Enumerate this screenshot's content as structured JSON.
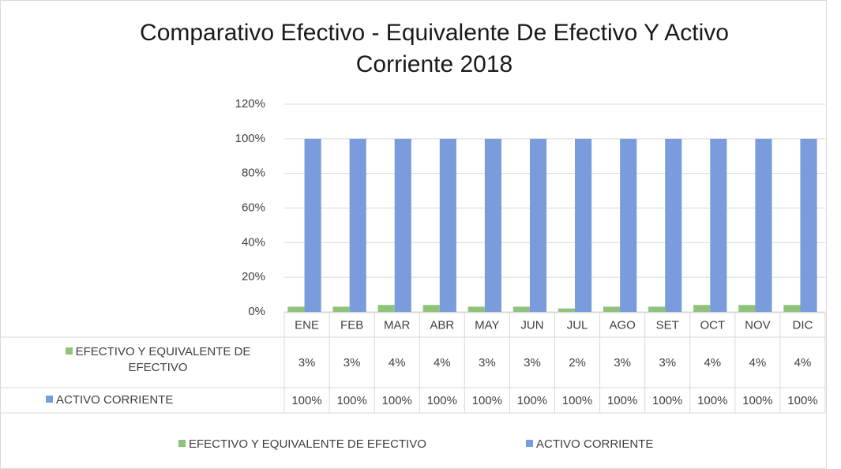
{
  "chart_data": {
    "type": "bar",
    "title": "Comparativo Efectivo - Equivalente De Efectivo Y Activo Corriente 2018",
    "categories": [
      "ENE",
      "FEB",
      "MAR",
      "ABR",
      "MAY",
      "JUN",
      "JUL",
      "AGO",
      "SET",
      "OCT",
      "NOV",
      "DIC"
    ],
    "series": [
      {
        "name": "EFECTIVO Y EQUIVALENTE DE EFECTIVO",
        "color": "#8fc27a",
        "values": [
          3,
          3,
          4,
          4,
          3,
          3,
          2,
          3,
          3,
          4,
          4,
          4
        ],
        "value_labels": [
          "3%",
          "3%",
          "4%",
          "4%",
          "3%",
          "3%",
          "2%",
          "3%",
          "3%",
          "4%",
          "4%",
          "4%"
        ]
      },
      {
        "name": "ACTIVO CORRIENTE",
        "color": "#7a9cdc",
        "values": [
          100,
          100,
          100,
          100,
          100,
          100,
          100,
          100,
          100,
          100,
          100,
          100
        ],
        "value_labels": [
          "100%",
          "100%",
          "100%",
          "100%",
          "100%",
          "100%",
          "100%",
          "100%",
          "100%",
          "100%",
          "100%",
          "100%"
        ]
      }
    ],
    "ylim": [
      0,
      120
    ],
    "yticks": [
      {
        "value": 0,
        "label": "0%"
      },
      {
        "value": 20,
        "label": "20%"
      },
      {
        "value": 40,
        "label": "40%"
      },
      {
        "value": 60,
        "label": "60%"
      },
      {
        "value": 80,
        "label": "80%"
      },
      {
        "value": 100,
        "label": "100%"
      },
      {
        "value": 120,
        "label": "120%"
      }
    ],
    "grid": true,
    "legend": "bottom",
    "data_table": true
  }
}
